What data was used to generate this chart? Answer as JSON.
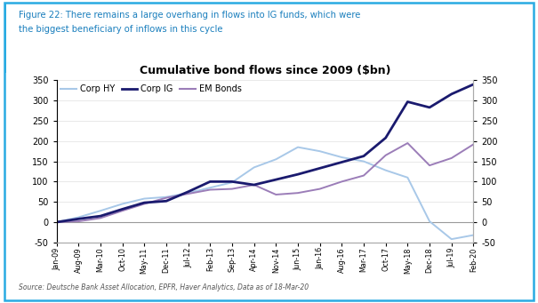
{
  "title": "Cumulative bond flows since 2009 ($bn)",
  "figure_caption_line1": "Figure 22: There remains a large overhang in flows into IG funds, which were",
  "figure_caption_line2": "the biggest beneficiary of inflows in this cycle",
  "source_text": "Source: Deutsche Bank Asset Allocation, EPFR, Haver Analytics, Data as of 18-Mar-20",
  "ylim": [
    -50,
    350
  ],
  "yticks": [
    -50,
    0,
    50,
    100,
    150,
    200,
    250,
    300,
    350
  ],
  "colors": {
    "corp_hy": "#a8c8e8",
    "corp_ig": "#1a1a6e",
    "em_bonds": "#9b7db8"
  },
  "border_color": "#29abe2",
  "caption_color": "#1a7fbd",
  "x_labels": [
    "Jan-09",
    "Aug-09",
    "Mar-10",
    "Oct-10",
    "May-11",
    "Dec-11",
    "Jul-12",
    "Feb-13",
    "Sep-13",
    "Apr-14",
    "Nov-14",
    "Jun-15",
    "Jan-16",
    "Aug-16",
    "Mar-17",
    "Oct-17",
    "May-18",
    "Dec-18",
    "Jul-19",
    "Feb-20"
  ],
  "corp_hy": [
    0,
    12,
    28,
    45,
    58,
    62,
    72,
    85,
    98,
    135,
    155,
    185,
    175,
    160,
    150,
    128,
    110,
    2,
    -42,
    -32
  ],
  "corp_ig": [
    0,
    8,
    15,
    32,
    48,
    52,
    75,
    100,
    100,
    92,
    105,
    118,
    133,
    148,
    163,
    208,
    297,
    283,
    316,
    340
  ],
  "em_bonds": [
    0,
    2,
    10,
    28,
    45,
    60,
    70,
    80,
    82,
    92,
    68,
    72,
    82,
    100,
    115,
    165,
    195,
    140,
    158,
    192
  ]
}
